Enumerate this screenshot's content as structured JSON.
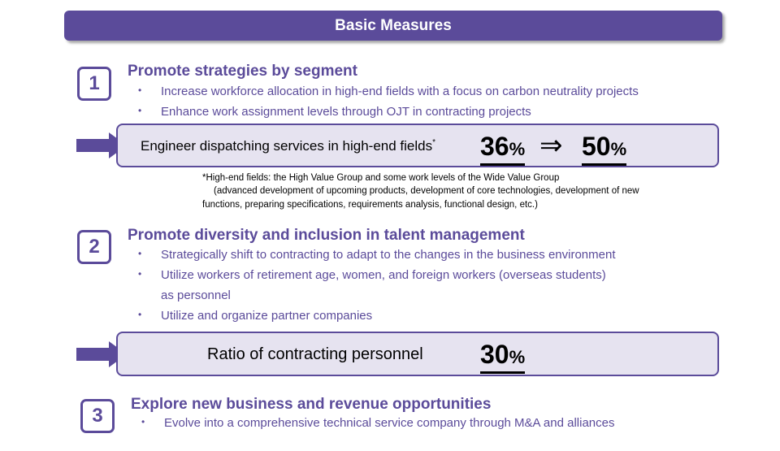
{
  "title": "Basic Measures",
  "sections": [
    {
      "number": "1",
      "heading": "Promote strategies by segment",
      "bullets": [
        "Increase workforce allocation in high-end fields with a focus on carbon neutrality projects",
        "Enhance work assignment levels through OJT in contracting projects"
      ],
      "kpi": {
        "label": "Engineer dispatching services in high-end fields",
        "label_mark": "*",
        "from_value": "36",
        "from_unit": "%",
        "arrow": "⇒",
        "to_value": "50",
        "to_unit": "%"
      },
      "note_lines": [
        "*High-end fields: the High Value Group and some work levels of the Wide Value Group",
        "(advanced development of upcoming products, development of core technologies, development of new",
        "functions, preparing specifications, requirements analysis, functional design, etc.)"
      ]
    },
    {
      "number": "2",
      "heading": "Promote diversity and inclusion in talent management",
      "bullets": [
        "Strategically shift to contracting to adapt to the changes in the business environment",
        "Utilize workers of retirement age, women, and foreign workers (overseas students)",
        "Utilize and organize partner companies"
      ],
      "bullet_continuation": "as personnel",
      "kpi": {
        "label": "Ratio of contracting personnel",
        "value": "30",
        "unit": "%"
      }
    },
    {
      "number": "3",
      "heading": "Explore new business and revenue opportunities",
      "bullets": [
        "Evolve into a comprehensive technical service company through M&A and alliances"
      ]
    }
  ],
  "bullet_char": "•",
  "colors": {
    "accent": "#5b4b9a",
    "kpi_fill": "#e6e3f0"
  }
}
